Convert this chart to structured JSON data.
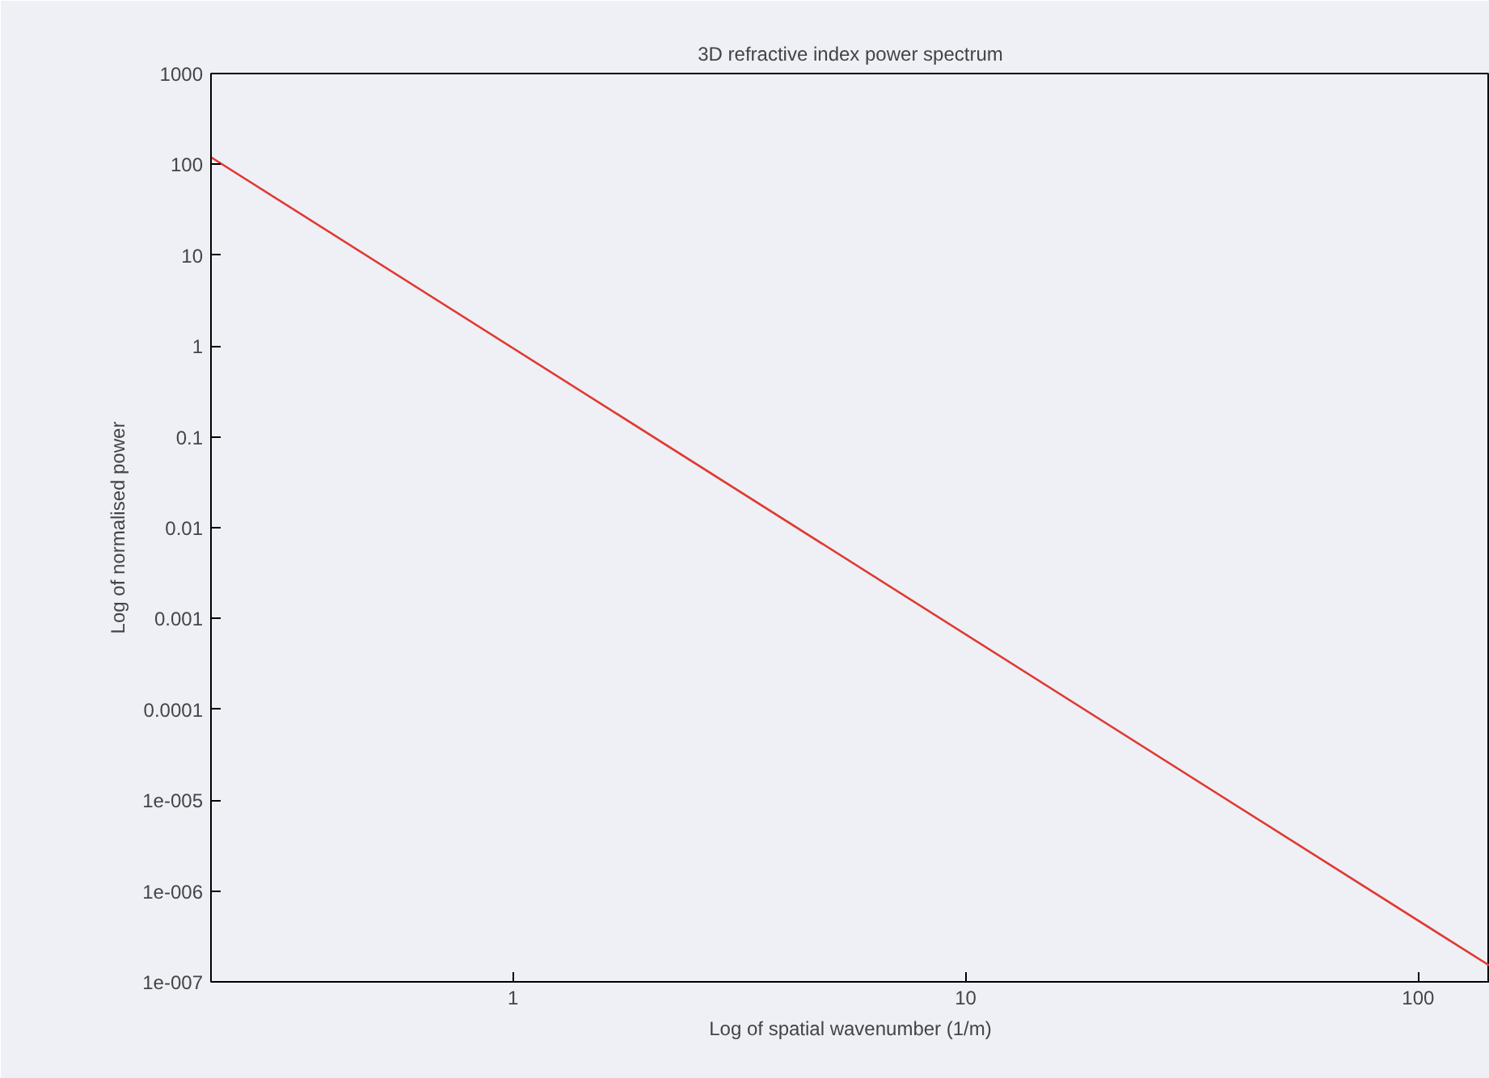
{
  "chart_data": {
    "type": "line",
    "title": "3D refractive index power spectrum",
    "xlabel": "Log of spatial wavenumber (1/m)",
    "ylabel": "Log of normalised power",
    "log": "xy",
    "grid": false,
    "marker": "none",
    "line_style": "solid",
    "xlim": [
      0.215,
      144
    ],
    "ylim": [
      1e-07,
      1000
    ],
    "xticks": [
      1,
      10,
      100
    ],
    "yticks": [
      {
        "value": 1e-07,
        "label": "1e-007"
      },
      {
        "value": 1e-06,
        "label": "1e-006"
      },
      {
        "value": 1e-05,
        "label": "1e-005"
      },
      0.0001,
      0.001,
      0.01,
      0.1,
      1,
      10,
      100,
      1000
    ],
    "x": [
      0.215,
      144
    ],
    "series": [
      {
        "color": "#e03a30",
        "values": [
          120,
          1.5e-07
        ]
      }
    ]
  }
}
